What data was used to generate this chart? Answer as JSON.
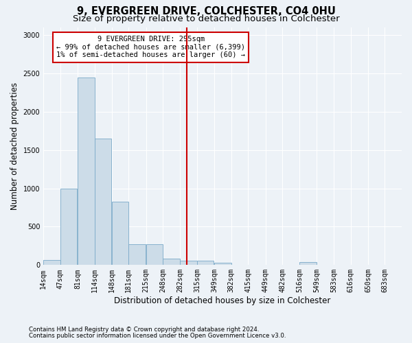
{
  "title": "9, EVERGREEN DRIVE, COLCHESTER, CO4 0HU",
  "subtitle": "Size of property relative to detached houses in Colchester",
  "xlabel": "Distribution of detached houses by size in Colchester",
  "ylabel": "Number of detached properties",
  "annotation_line1": "9 EVERGREEN DRIVE: 295sqm",
  "annotation_line2": "← 99% of detached houses are smaller (6,399)",
  "annotation_line3": "1% of semi-detached houses are larger (60) →",
  "property_size": 295,
  "footer1": "Contains HM Land Registry data © Crown copyright and database right 2024.",
  "footer2": "Contains public sector information licensed under the Open Government Licence v3.0.",
  "bar_color": "#ccdce8",
  "bar_edge_color": "#7aaac8",
  "vline_color": "#cc0000",
  "background_color": "#edf2f7",
  "annotation_box_color": "#ffffff",
  "annotation_box_edge": "#cc0000",
  "bins": [
    14,
    47,
    81,
    114,
    148,
    181,
    215,
    248,
    282,
    315,
    349,
    382,
    415,
    449,
    482,
    516,
    549,
    583,
    616,
    650,
    683
  ],
  "counts": [
    70,
    1000,
    2450,
    1650,
    830,
    270,
    270,
    80,
    55,
    55,
    30,
    5,
    0,
    0,
    0,
    40,
    0,
    0,
    0,
    0,
    0
  ],
  "ylim": [
    0,
    3100
  ],
  "yticks": [
    0,
    500,
    1000,
    1500,
    2000,
    2500,
    3000
  ],
  "title_fontsize": 10.5,
  "subtitle_fontsize": 9.5,
  "tick_fontsize": 7,
  "xlabel_fontsize": 8.5,
  "ylabel_fontsize": 8.5,
  "annotation_fontsize": 7.5,
  "footer_fontsize": 6.2
}
